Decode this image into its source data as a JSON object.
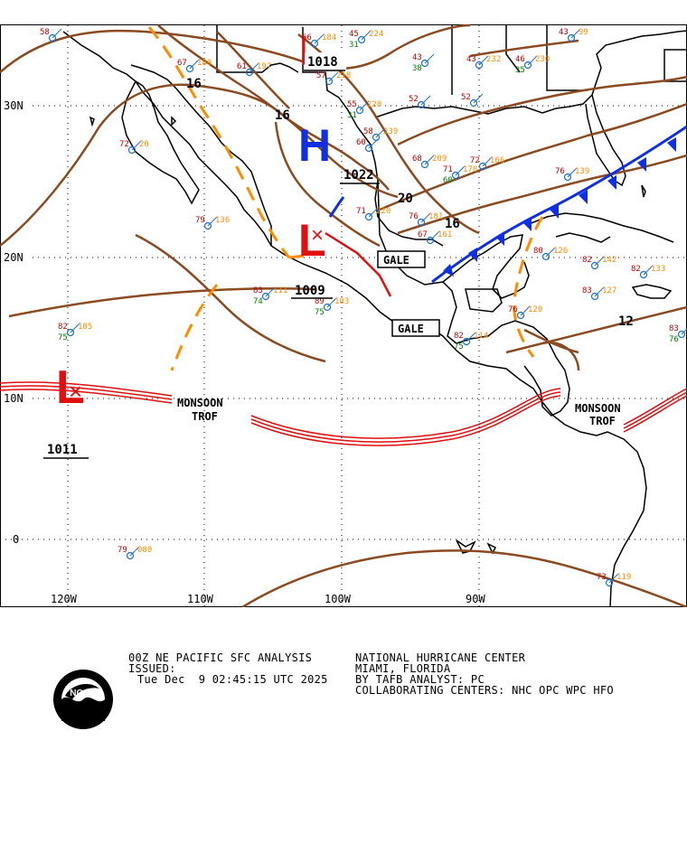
{
  "map": {
    "lat_labels": [
      "30N",
      "20N",
      "10N",
      "0"
    ],
    "lon_labels": [
      "120W",
      "110W",
      "100W",
      "90W"
    ],
    "features": {
      "high": {
        "symbol": "H",
        "pressure": "1022"
      },
      "lows": [
        {
          "symbol": "L",
          "pressure": "1009"
        },
        {
          "symbol": "L",
          "pressure": "1011"
        }
      ],
      "small_high": {
        "pressure": "1018"
      },
      "gale_labels": [
        "GALE",
        "GALE"
      ],
      "monsoon_labels": [
        [
          "MONSOON",
          "TROF"
        ],
        [
          "MONSOON",
          "TROF"
        ]
      ],
      "isobar_labels": [
        "16",
        "16",
        "20",
        "16",
        "12"
      ]
    },
    "stations": [
      {
        "t": "58",
        "d": "",
        "p": ""
      },
      {
        "t": "67",
        "d": "",
        "p": "180"
      },
      {
        "t": "61",
        "d": "",
        "p": "197"
      },
      {
        "t": "66",
        "d": "",
        "p": "184"
      },
      {
        "t": "45",
        "d": "31",
        "p": "224"
      },
      {
        "t": "57",
        "d": "",
        "p": "218"
      },
      {
        "t": "55",
        "d": "31",
        "p": "220"
      },
      {
        "t": "43",
        "d": "38",
        "p": ""
      },
      {
        "t": "43",
        "d": "",
        "p": "232"
      },
      {
        "t": "46",
        "d": "35",
        "p": "230"
      },
      {
        "t": "43",
        "d": "",
        "p": "99"
      },
      {
        "t": "52",
        "d": "",
        "p": ""
      },
      {
        "t": "52",
        "d": "",
        "p": ""
      },
      {
        "t": "58",
        "d": "",
        "p": "239"
      },
      {
        "t": "60",
        "d": "",
        "p": ""
      },
      {
        "t": "68",
        "d": "",
        "p": "209"
      },
      {
        "t": "71",
        "d": "60",
        "p": "178"
      },
      {
        "t": "72",
        "d": "",
        "p": "166"
      },
      {
        "t": "76",
        "d": "",
        "p": "139"
      },
      {
        "t": "71",
        "d": "",
        "p": "220"
      },
      {
        "t": "76",
        "d": "",
        "p": "181"
      },
      {
        "t": "67",
        "d": "",
        "p": "161"
      },
      {
        "t": "79",
        "d": "",
        "p": "136"
      },
      {
        "t": "72",
        "d": "",
        "p": "20"
      },
      {
        "t": "80",
        "d": "",
        "p": "126"
      },
      {
        "t": "82",
        "d": "",
        "p": "142"
      },
      {
        "t": "82",
        "d": "",
        "p": "133"
      },
      {
        "t": "83",
        "d": "",
        "p": "127"
      },
      {
        "t": "83",
        "d": "74",
        "p": "111"
      },
      {
        "t": "89",
        "d": "75",
        "p": "103"
      },
      {
        "t": "82",
        "d": "75",
        "p": "105"
      },
      {
        "t": "82",
        "d": "75",
        "p": "114"
      },
      {
        "t": "76",
        "d": "",
        "p": "120"
      },
      {
        "t": "79",
        "d": "",
        "p": "080"
      },
      {
        "t": "73",
        "d": "",
        "p": "119"
      },
      {
        "t": "83",
        "d": "76",
        "p": ""
      }
    ]
  },
  "footer": {
    "title_left": "00Z NE PACIFIC SFC ANALYSIS",
    "title_right": "NATIONAL HURRICANE CENTER",
    "issued_label": "ISSUED:",
    "location": "MIAMI, FLORIDA",
    "issued_time": "Tue Dec  9 02:45:15 UTC 2025",
    "analyst": "BY TAFB ANALYST: PC",
    "collab": "COLLABORATING CENTERS: NHC OPC WPC HFO"
  },
  "logo": {
    "text": "NOAA"
  },
  "colors": {
    "isobar": "#8B4A1F",
    "trough": "#FF8C00",
    "high": "#1030E0",
    "low": "#E01010",
    "monsoon": "#E01010",
    "cold_front": "#1030E0",
    "station_temp": "#C00000",
    "station_dew": "#008000",
    "station_press": "#FF8C00"
  }
}
